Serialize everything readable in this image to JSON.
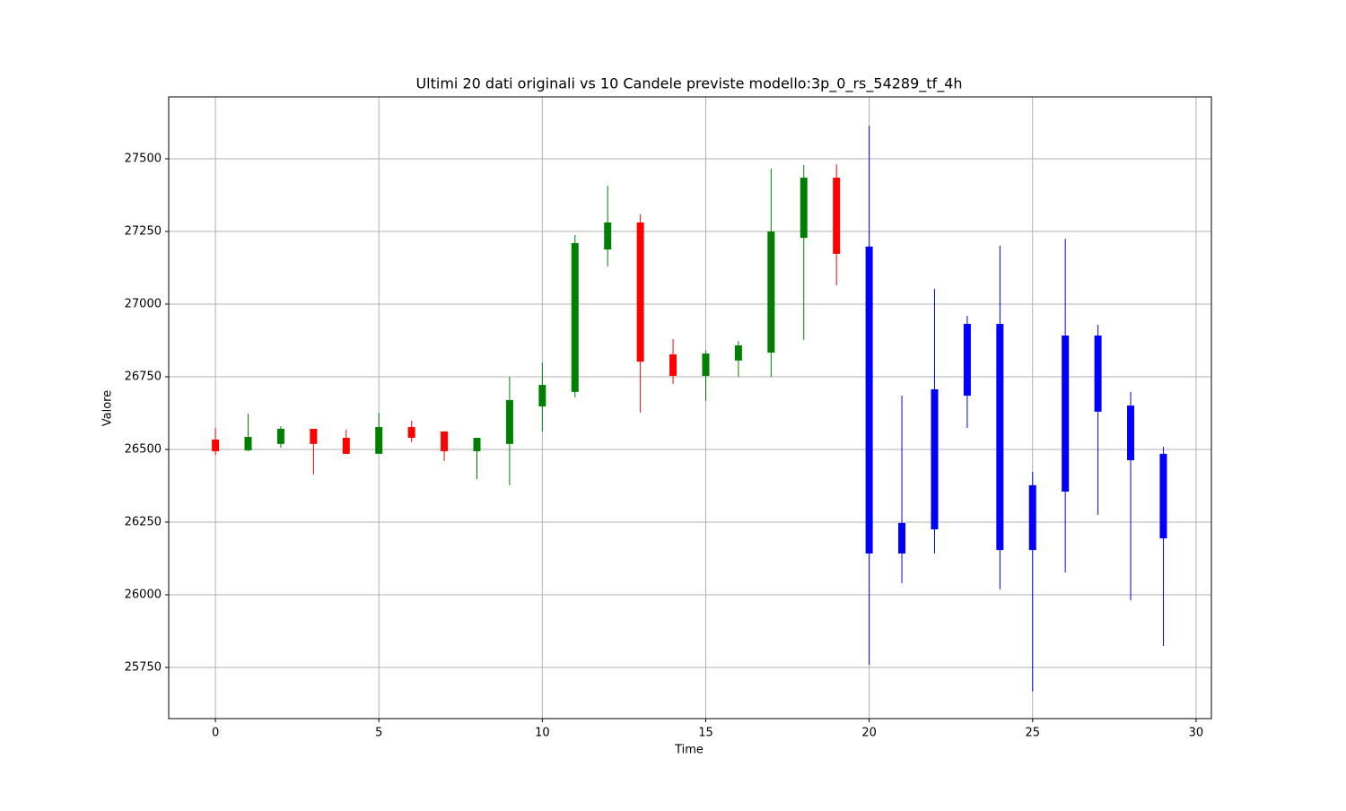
{
  "chart_data": {
    "type": "candlestick",
    "title": "Ultimi 20 dati originali vs 10 Candele previste modello:3p_0_rs_54289_tf_4h",
    "x_label": "Time",
    "y_label": "Valore",
    "xlim": [
      -1.43,
      30.47
    ],
    "ylim": [
      25574,
      27713
    ],
    "xticks": [
      0,
      5,
      10,
      15,
      20,
      25,
      30
    ],
    "yticks": [
      25750,
      26000,
      26250,
      26500,
      26750,
      27000,
      27250,
      27500
    ],
    "grid": true,
    "series": [
      {
        "up_color": "green",
        "down_color": "red",
        "x": [
          0,
          1,
          2,
          3,
          4,
          5,
          6,
          7,
          8,
          9,
          10,
          11,
          12,
          13,
          14,
          15,
          16,
          17,
          18,
          19
        ],
        "open": [
          26534,
          26497,
          26519,
          26571,
          26540,
          26485,
          26577,
          26562,
          26494,
          26519,
          26648,
          26698,
          27188,
          27281,
          26827,
          26753,
          26806,
          26833,
          27228,
          27435
        ],
        "high": [
          26574,
          26623,
          26580,
          26571,
          26568,
          26627,
          26599,
          26562,
          26540,
          26750,
          26799,
          27238,
          27407,
          27309,
          26880,
          26840,
          26873,
          27466,
          27478,
          27481
        ],
        "low": [
          26481,
          26494,
          26506,
          26414,
          26485,
          26485,
          26525,
          26460,
          26398,
          26377,
          26562,
          26679,
          27130,
          26627,
          26725,
          26667,
          26750,
          26750,
          26877,
          27065
        ],
        "close": [
          26494,
          26543,
          26571,
          26519,
          26485,
          26577,
          26540,
          26494,
          26540,
          26670,
          26722,
          27210,
          27281,
          26802,
          26753,
          26830,
          26858,
          27250,
          27435,
          27173
        ]
      },
      {
        "color": "blue",
        "x": [
          20,
          21,
          22,
          23,
          24,
          25,
          26,
          27,
          28,
          29
        ],
        "open": [
          27198,
          26247,
          26707,
          26932,
          26932,
          26377,
          26892,
          26892,
          26651,
          26485
        ],
        "high": [
          27614,
          26685,
          27052,
          26960,
          27201,
          26423,
          27225,
          26929,
          26698,
          26509
        ],
        "low": [
          25759,
          26040,
          26142,
          26574,
          26019,
          25667,
          26077,
          26275,
          25981,
          25824
        ],
        "close": [
          26142,
          26142,
          26225,
          26685,
          26154,
          26154,
          26355,
          26630,
          26463,
          26194
        ]
      }
    ]
  }
}
